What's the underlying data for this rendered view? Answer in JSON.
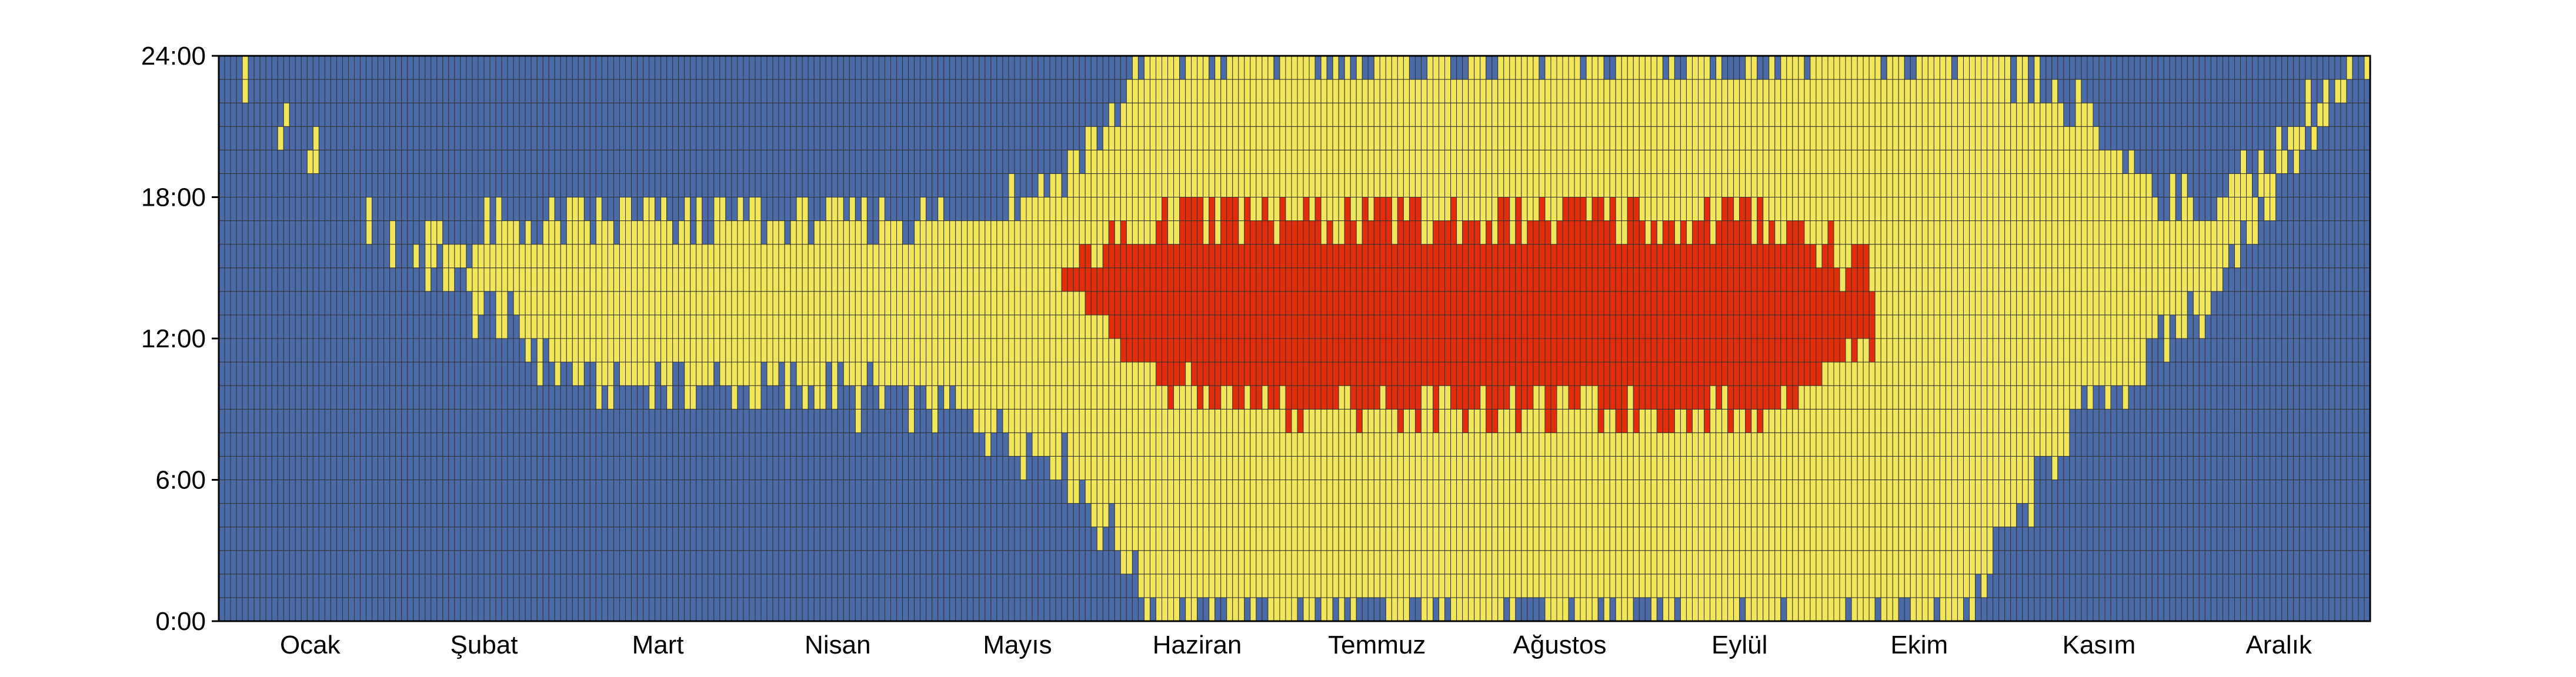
{
  "chart_data": {
    "type": "heatmap",
    "title": "",
    "xlabel": "",
    "ylabel": "",
    "x_tick_labels": [
      "Ocak",
      "Şubat",
      "Mart",
      "Nisan",
      "Mayıs",
      "Haziran",
      "Temmuz",
      "Ağustos",
      "Eylül",
      "Ekim",
      "Kasım",
      "Aralık"
    ],
    "y_tick_labels": [
      "0:00",
      "6:00",
      "12:00",
      "18:00",
      "24:00"
    ],
    "y_ticks_hours": [
      0,
      6,
      12,
      18,
      24
    ],
    "days_per_month": [
      31,
      28,
      31,
      30,
      31,
      30,
      31,
      31,
      30,
      31,
      30,
      31
    ],
    "hours_per_day": 24,
    "colors": {
      "blue": "#4a6aa8",
      "yellow": "#f2e75a",
      "red": "#e32d0a",
      "cell_border": "#333333",
      "frame": "#000000"
    },
    "band_profile": {
      "day_fraction_control": [
        0,
        0.08,
        0.17,
        0.25,
        0.34,
        0.39,
        0.44,
        0.5,
        0.56,
        0.61,
        0.67,
        0.72,
        0.77,
        0.81,
        0.86,
        0.92,
        1
      ],
      "yellow_start_hour": [
        24,
        16,
        10,
        10,
        9,
        7,
        0,
        0,
        0,
        0,
        0,
        0,
        0,
        0,
        8,
        13,
        24
      ],
      "yellow_end_hour": [
        24,
        16,
        17,
        17,
        17,
        19,
        24,
        24,
        24,
        24,
        24,
        24,
        24,
        24,
        22,
        17,
        24
      ],
      "red_start_hour": [
        99,
        99,
        99,
        99,
        99,
        14,
        10,
        9,
        9,
        9,
        9,
        9,
        12,
        99,
        99,
        99,
        99
      ],
      "red_end_hour": [
        0,
        0,
        0,
        0,
        0,
        15,
        17,
        17,
        17,
        17,
        17,
        17,
        15,
        0,
        0,
        0,
        0
      ]
    }
  }
}
